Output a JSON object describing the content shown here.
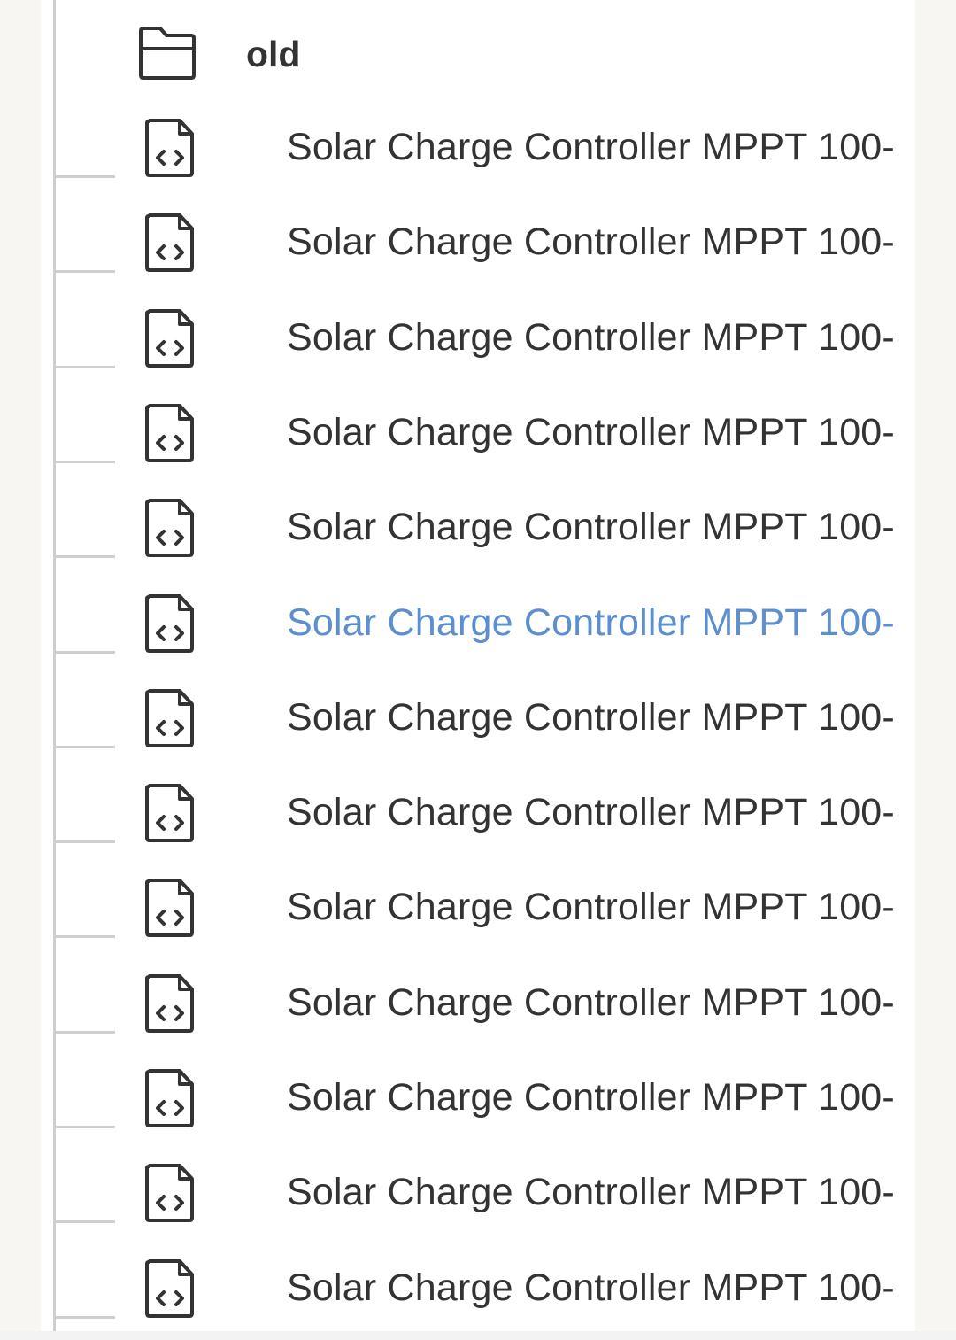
{
  "folder": {
    "name": "old",
    "icon": "folder-icon"
  },
  "files": [
    {
      "name": "Solar Charge Controller MPPT 100-",
      "icon": "code-file-icon",
      "active": false
    },
    {
      "name": "Solar Charge Controller MPPT 100-",
      "icon": "code-file-icon",
      "active": false
    },
    {
      "name": "Solar Charge Controller MPPT 100-",
      "icon": "code-file-icon",
      "active": false
    },
    {
      "name": "Solar Charge Controller MPPT 100-",
      "icon": "code-file-icon",
      "active": false
    },
    {
      "name": "Solar Charge Controller MPPT 100-",
      "icon": "code-file-icon",
      "active": false
    },
    {
      "name": "Solar Charge Controller MPPT 100-",
      "icon": "code-file-icon",
      "active": true
    },
    {
      "name": "Solar Charge Controller MPPT 100-",
      "icon": "code-file-icon",
      "active": false
    },
    {
      "name": "Solar Charge Controller MPPT 100-",
      "icon": "code-file-icon",
      "active": false
    },
    {
      "name": "Solar Charge Controller MPPT 100-",
      "icon": "code-file-icon",
      "active": false
    },
    {
      "name": "Solar Charge Controller MPPT 100-",
      "icon": "code-file-icon",
      "active": false
    },
    {
      "name": "Solar Charge Controller MPPT 100-",
      "icon": "code-file-icon",
      "active": false
    },
    {
      "name": "Solar Charge Controller MPPT 100-",
      "icon": "code-file-icon",
      "active": false
    },
    {
      "name": "Solar Charge Controller MPPT 100-",
      "icon": "code-file-icon",
      "active": false
    }
  ],
  "colors": {
    "text": "#333333",
    "active": "#5b8fd0",
    "tree_line": "#cfcfcf"
  }
}
